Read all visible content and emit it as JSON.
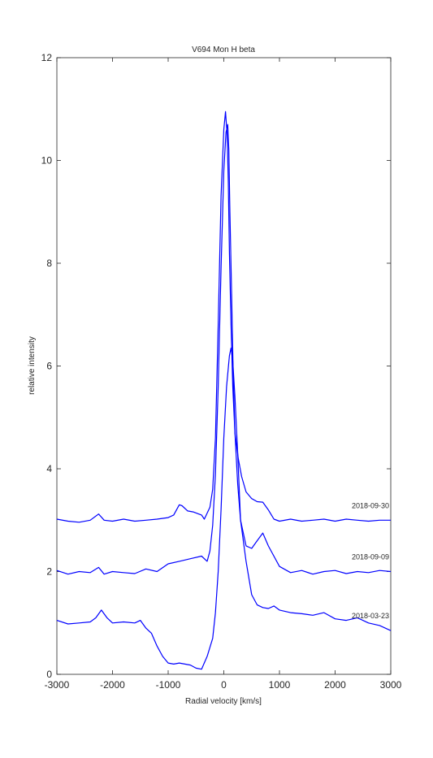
{
  "chart_data": {
    "type": "line",
    "title": "V694 Mon  H beta",
    "xlabel": "Radial velocity [km/s]",
    "ylabel": "relative intensity",
    "xlim": [
      -3000,
      3000
    ],
    "ylim": [
      0,
      12
    ],
    "xticks": [
      -3000,
      -2000,
      -1000,
      0,
      1000,
      2000,
      3000
    ],
    "yticks": [
      0,
      2,
      4,
      6,
      8,
      10,
      12
    ],
    "grid": false,
    "legend": "none",
    "line_color": "#0000ff",
    "series": [
      {
        "name": "2018-09-30",
        "x": [
          -3000,
          -2800,
          -2600,
          -2400,
          -2250,
          -2150,
          -2000,
          -1800,
          -1600,
          -1400,
          -1200,
          -1000,
          -900,
          -800,
          -750,
          -650,
          -550,
          -450,
          -400,
          -350,
          -250,
          -200,
          -150,
          -100,
          -50,
          0,
          30,
          60,
          80,
          100,
          130,
          160,
          200,
          260,
          320,
          400,
          500,
          600,
          700,
          800,
          900,
          1000,
          1200,
          1400,
          1600,
          1800,
          2000,
          2200,
          2400,
          2600,
          2800,
          3000
        ],
        "y": [
          3.02,
          2.98,
          2.96,
          3.0,
          3.12,
          3.0,
          2.98,
          3.02,
          2.98,
          3.0,
          3.02,
          3.05,
          3.1,
          3.3,
          3.28,
          3.18,
          3.16,
          3.12,
          3.1,
          3.02,
          3.25,
          3.6,
          4.6,
          6.8,
          9.3,
          10.6,
          10.95,
          10.5,
          9.6,
          8.2,
          6.8,
          5.6,
          4.7,
          4.2,
          3.85,
          3.55,
          3.42,
          3.36,
          3.35,
          3.2,
          3.02,
          2.98,
          3.02,
          2.98,
          3.0,
          3.02,
          2.98,
          3.02,
          3.0,
          2.98,
          3.0,
          3.0
        ]
      },
      {
        "name": "2018-09-09",
        "x": [
          -3000,
          -2800,
          -2600,
          -2400,
          -2250,
          -2150,
          -2000,
          -1800,
          -1600,
          -1400,
          -1200,
          -1000,
          -800,
          -600,
          -400,
          -300,
          -250,
          -200,
          -150,
          -100,
          -50,
          0,
          40,
          70,
          90,
          110,
          140,
          170,
          200,
          250,
          300,
          400,
          500,
          600,
          700,
          800,
          1000,
          1200,
          1400,
          1600,
          1800,
          2000,
          2200,
          2400,
          2600,
          2800,
          3000
        ],
        "y": [
          2.02,
          1.95,
          2.0,
          1.98,
          2.08,
          1.95,
          2.0,
          1.98,
          1.96,
          2.05,
          2.0,
          2.15,
          2.2,
          2.25,
          2.3,
          2.2,
          2.4,
          2.9,
          3.9,
          5.6,
          7.9,
          9.8,
          10.55,
          10.7,
          10.2,
          9.0,
          7.4,
          5.8,
          4.7,
          3.7,
          3.0,
          2.5,
          2.45,
          2.6,
          2.75,
          2.5,
          2.1,
          1.98,
          2.02,
          1.95,
          2.0,
          2.02,
          1.96,
          2.0,
          1.98,
          2.02,
          2.0
        ]
      },
      {
        "name": "2018-03-23",
        "x": [
          -3000,
          -2800,
          -2600,
          -2400,
          -2300,
          -2200,
          -2100,
          -2000,
          -1800,
          -1600,
          -1500,
          -1400,
          -1300,
          -1200,
          -1100,
          -1000,
          -900,
          -800,
          -700,
          -600,
          -500,
          -400,
          -300,
          -200,
          -150,
          -100,
          -50,
          0,
          50,
          100,
          130,
          160,
          200,
          250,
          300,
          400,
          500,
          600,
          700,
          800,
          900,
          1000,
          1200,
          1400,
          1600,
          1800,
          2000,
          2200,
          2400,
          2600,
          2800,
          3000
        ],
        "y": [
          1.05,
          0.98,
          1.0,
          1.02,
          1.1,
          1.25,
          1.1,
          1.0,
          1.02,
          1.0,
          1.05,
          0.9,
          0.8,
          0.55,
          0.35,
          0.22,
          0.2,
          0.22,
          0.2,
          0.18,
          0.12,
          0.1,
          0.35,
          0.7,
          1.2,
          2.0,
          3.2,
          4.6,
          5.6,
          6.2,
          6.35,
          6.1,
          5.4,
          4.3,
          3.0,
          2.2,
          1.55,
          1.35,
          1.3,
          1.28,
          1.33,
          1.25,
          1.2,
          1.18,
          1.15,
          1.2,
          1.08,
          1.05,
          1.1,
          1.0,
          0.95,
          0.85
        ]
      }
    ]
  }
}
